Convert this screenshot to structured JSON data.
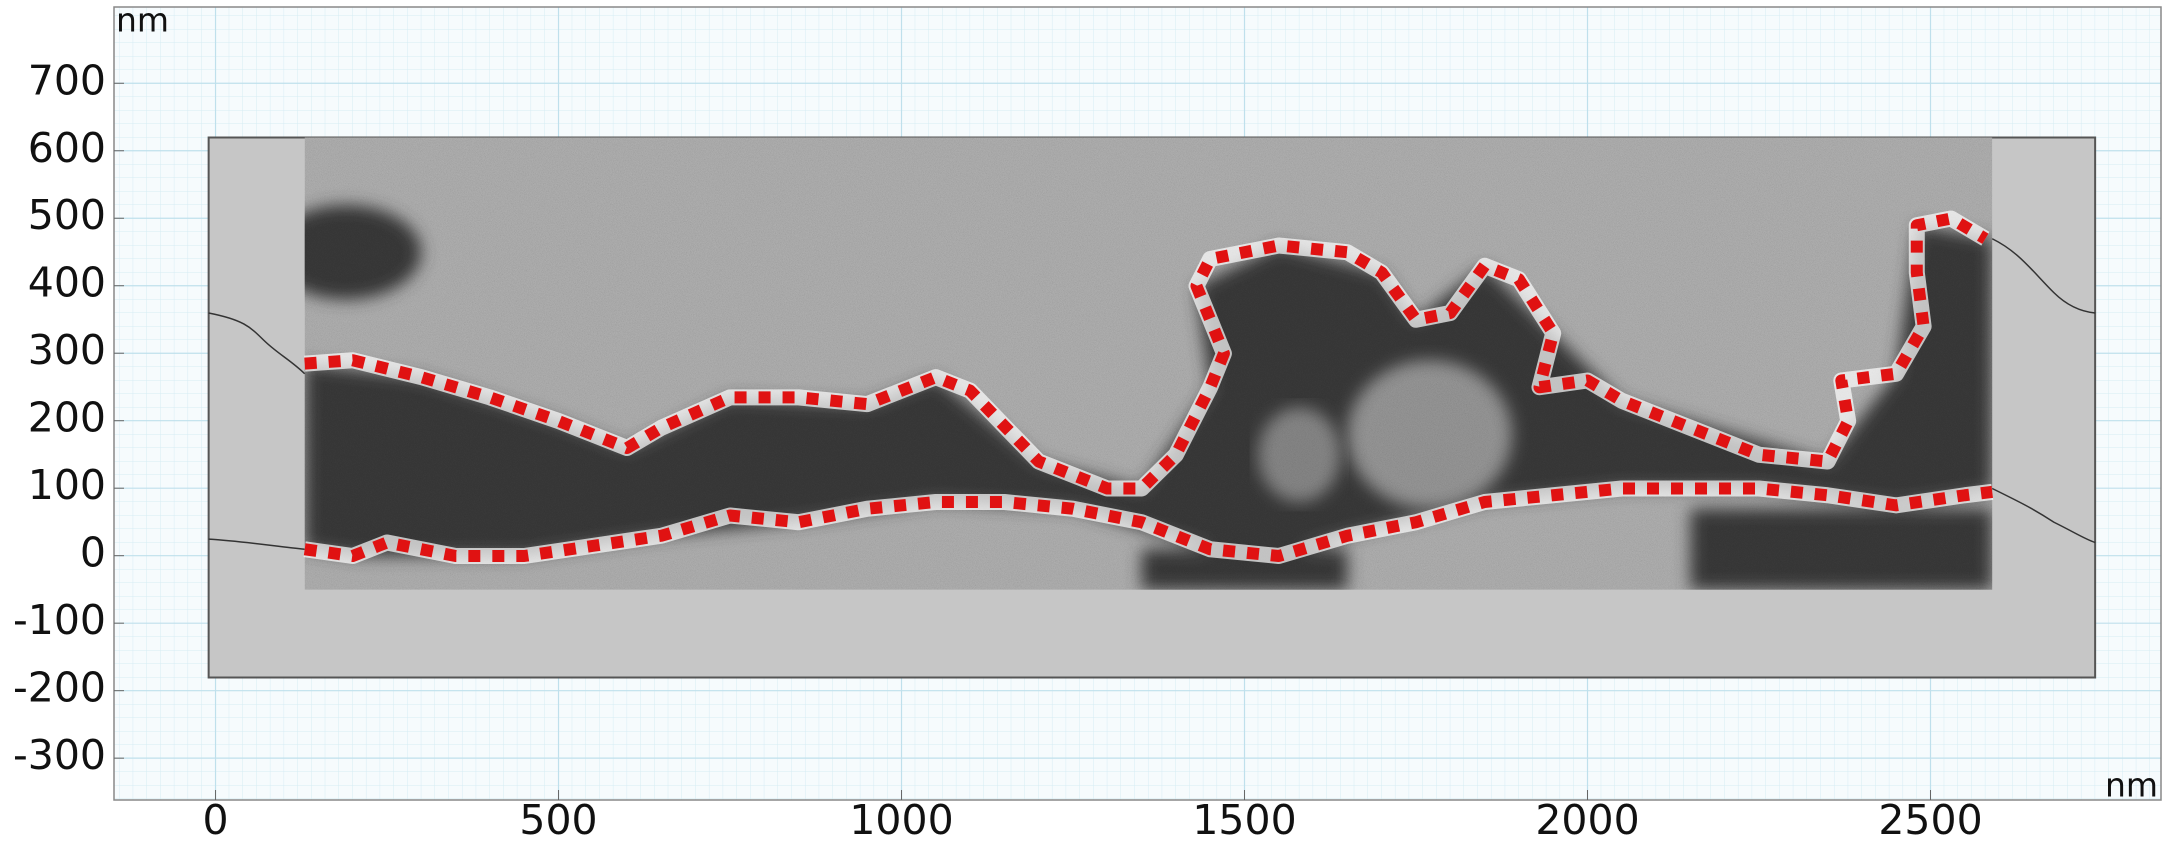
{
  "chart_data": {
    "type": "geometry",
    "x_unit": "nm",
    "y_unit": "nm",
    "xlim": [
      -148,
      2836
    ],
    "ylim": [
      -362,
      813
    ],
    "xticks": [
      0,
      500,
      1000,
      1500,
      2000,
      2500
    ],
    "yticks": [
      -300,
      -200,
      -100,
      0,
      100,
      200,
      300,
      400,
      500,
      600,
      700
    ],
    "grid": true
  }
}
